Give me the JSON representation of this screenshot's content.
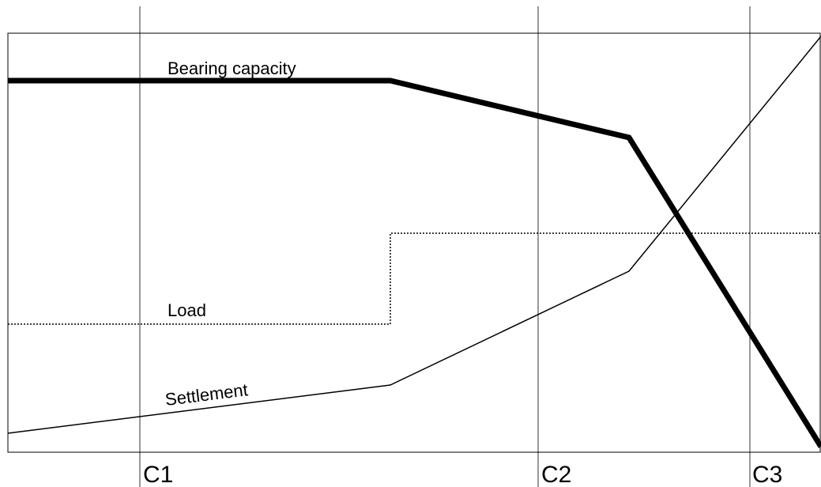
{
  "curves": {
    "bearing_capacity": "Bearing capacity",
    "load": "Load",
    "settlement": "Settlement"
  },
  "sections": [
    "C1",
    "C2",
    "C3"
  ]
}
